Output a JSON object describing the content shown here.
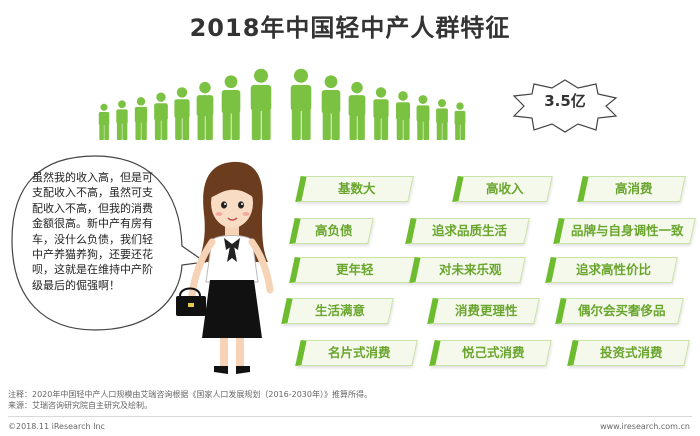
{
  "title": "2018年中国轻中产人群特征",
  "population_badge": "3.5亿",
  "speech_bubble": "虽然我的收入高，但是可支配收入不高，虽然可支配收入不高，但我的消费金额很高。新中产有房有车，没什么负债，我们轻中产养猫养狗，还要还花呗，这就是在维持中产阶级最后的倔强啊！",
  "tags": {
    "t1": "基数大",
    "t2": "高收入",
    "t3": "高消费",
    "t4": "高负债",
    "t5": "追求品质生活",
    "t6": "品牌与自身调性一致",
    "t7": "更年轻",
    "t8": "对未来乐观",
    "t9": "追求高性价比",
    "t10": "生活满意",
    "t11": "消费更理性",
    "t12": "偶尔会买奢侈品",
    "t13": "名片式消费",
    "t14": "悦己式消费",
    "t15": "投资式消费"
  },
  "footer": {
    "note": "注释：2020年中国轻中产人口规模由艾瑞咨询根据《国家人口发展规划（2016-2030年）》推算所得。",
    "source": "来源：艾瑞咨询研究院自主研究及绘制。",
    "copyright": "©2018.11 iResearch Inc",
    "website": "www.iresearch.com.cn"
  },
  "colors": {
    "figure_green": "#7cc242",
    "tag_text": "#6aa52e",
    "tag_accent": "#6dbb2e"
  }
}
